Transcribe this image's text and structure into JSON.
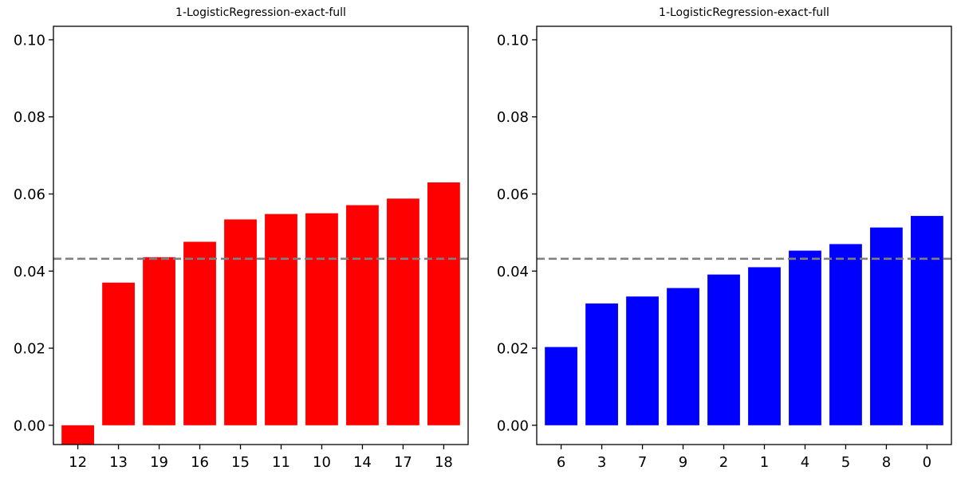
{
  "chart_data": [
    {
      "type": "bar",
      "title": "1-LogisticRegression-exact-full",
      "categories": [
        "12",
        "13",
        "19",
        "16",
        "15",
        "11",
        "10",
        "14",
        "17",
        "18"
      ],
      "values": [
        -0.005,
        0.037,
        0.0436,
        0.0476,
        0.0534,
        0.0548,
        0.055,
        0.0571,
        0.0588,
        0.063
      ],
      "ylim": [
        -0.005,
        0.1035
      ],
      "yticks": [
        "0.00",
        "0.02",
        "0.04",
        "0.06",
        "0.08",
        "0.10"
      ],
      "ytick_values": [
        0,
        0.02,
        0.04,
        0.06,
        0.08,
        0.1
      ],
      "reference_line": 0.0432,
      "bar_color": "#ff0000",
      "reference_color": "#808080",
      "grid": false,
      "xlabel": "",
      "ylabel": ""
    },
    {
      "type": "bar",
      "title": "1-LogisticRegression-exact-full",
      "categories": [
        "6",
        "3",
        "7",
        "9",
        "2",
        "1",
        "4",
        "5",
        "8",
        "0"
      ],
      "values": [
        0.0203,
        0.0316,
        0.0334,
        0.0356,
        0.0391,
        0.041,
        0.0453,
        0.047,
        0.0513,
        0.0543
      ],
      "ylim": [
        -0.005,
        0.1035
      ],
      "yticks": [
        "0.00",
        "0.02",
        "0.04",
        "0.06",
        "0.08",
        "0.10"
      ],
      "ytick_values": [
        0,
        0.02,
        0.04,
        0.06,
        0.08,
        0.1
      ],
      "reference_line": 0.0432,
      "bar_color": "#0000ff",
      "reference_color": "#808080",
      "grid": false,
      "xlabel": "",
      "ylabel": ""
    }
  ]
}
